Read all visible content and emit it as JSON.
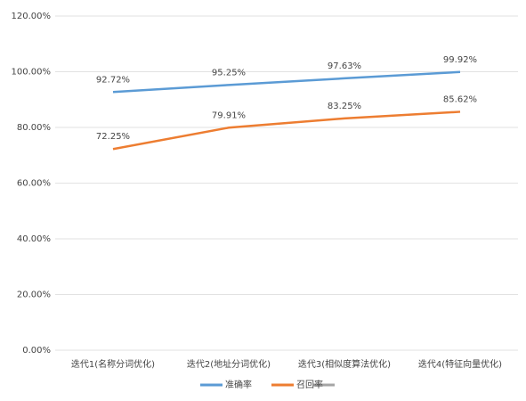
{
  "chart_data": {
    "type": "line",
    "categories": [
      "迭代1(名称分词优化)",
      "迭代2(地址分词优化)",
      "迭代3(相似度算法优化)",
      "迭代4(特征向量优化)"
    ],
    "series": [
      {
        "name": "准确率",
        "color": "#5b9bd5",
        "values": [
          92.72,
          95.25,
          97.63,
          99.92
        ],
        "value_labels": [
          "92.72%",
          "95.25%",
          "97.63%",
          "99.92%"
        ]
      },
      {
        "name": "召回率",
        "color": "#ed7d31",
        "values": [
          72.25,
          79.91,
          83.25,
          85.62
        ],
        "value_labels": [
          "72.25%",
          "79.91%",
          "83.25%",
          "85.62%"
        ]
      }
    ],
    "ylim": [
      0,
      120
    ],
    "yticks": [
      {
        "value": 0,
        "label": "0.00%"
      },
      {
        "value": 20,
        "label": "20.00%"
      },
      {
        "value": 40,
        "label": "40.00%"
      },
      {
        "value": 60,
        "label": "60.00%"
      },
      {
        "value": 80,
        "label": "80.00%"
      },
      {
        "value": 100,
        "label": "100.00%"
      },
      {
        "value": 120,
        "label": "120.00%"
      }
    ],
    "grid": true,
    "legend": "bottom"
  }
}
